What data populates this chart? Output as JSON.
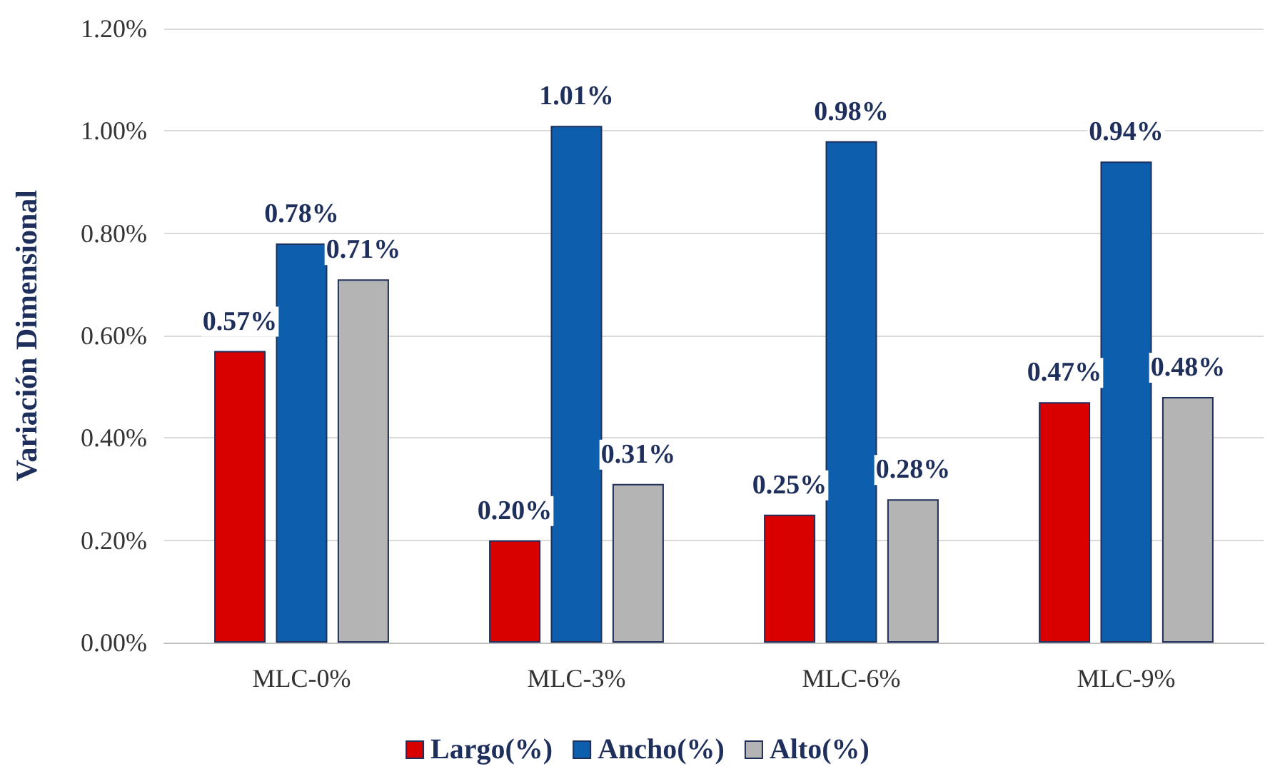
{
  "chart_data": {
    "type": "bar",
    "ylabel": "Variación Dimensional",
    "categories": [
      "MLC-0%",
      "MLC-3%",
      "MLC-6%",
      "MLC-9%"
    ],
    "series": [
      {
        "name": "Largo(%)",
        "color": "#d90000",
        "values": [
          0.57,
          0.2,
          0.25,
          0.47
        ],
        "value_labels": [
          "0.57%",
          "0.20%",
          "0.25%",
          "0.47%"
        ]
      },
      {
        "name": "Ancho(%)",
        "color": "#0d5fae",
        "values": [
          0.78,
          1.01,
          0.98,
          0.94
        ],
        "value_labels": [
          "0.78%",
          "1.01%",
          "0.98%",
          "0.94%"
        ]
      },
      {
        "name": "Alto(%)",
        "color": "#b4b4b4",
        "values": [
          0.71,
          0.31,
          0.28,
          0.48
        ],
        "value_labels": [
          "0.71%",
          "0.31%",
          "0.28%",
          "0.48%"
        ]
      }
    ],
    "ylim": [
      0,
      1.2
    ],
    "yticks": [
      {
        "value": 0,
        "label": "0.00%"
      },
      {
        "value": 0.2,
        "label": "0.20%"
      },
      {
        "value": 0.4,
        "label": "0.40%"
      },
      {
        "value": 0.6,
        "label": "0.60%"
      },
      {
        "value": 0.8,
        "label": "0.80%"
      },
      {
        "value": 1,
        "label": "1.00%"
      },
      {
        "value": 1.2,
        "label": "1.20%"
      }
    ],
    "grid": "y",
    "legend": "bottom"
  }
}
